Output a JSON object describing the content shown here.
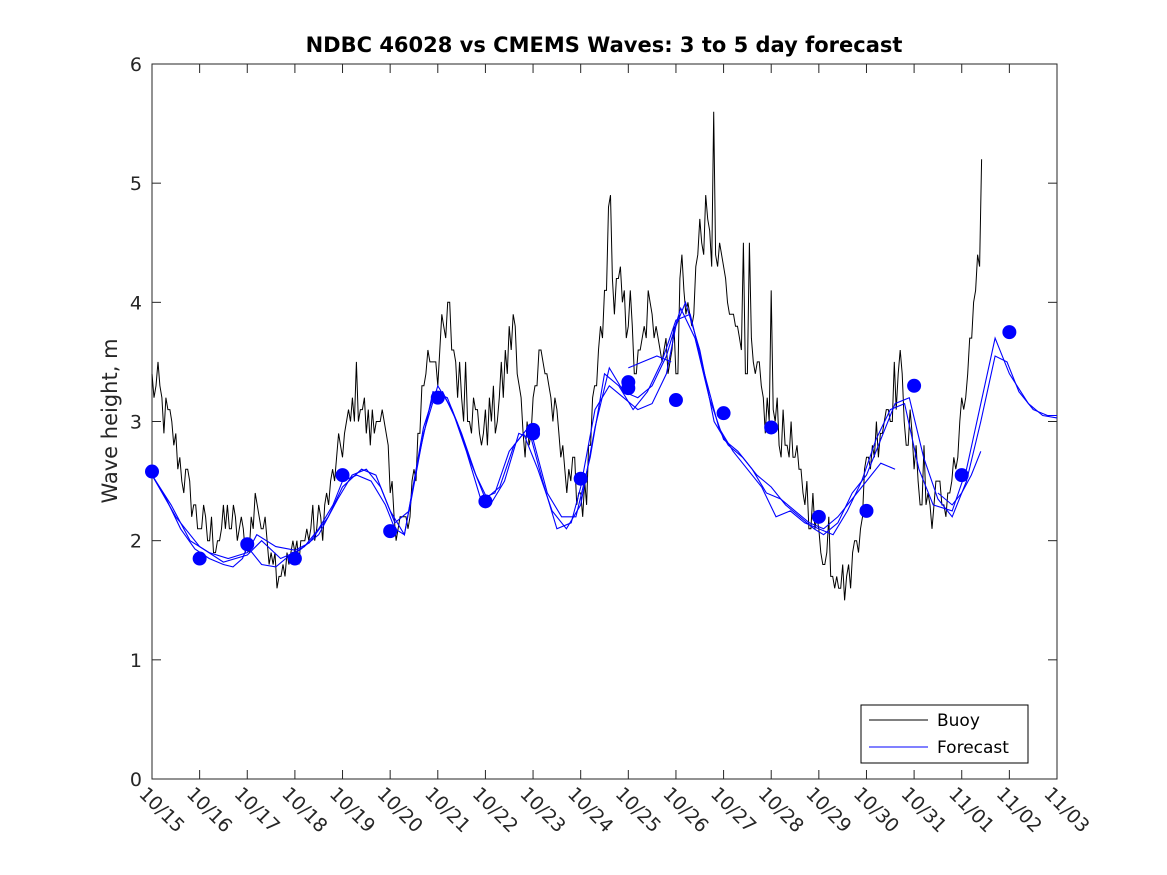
{
  "chart_data": {
    "type": "line",
    "title": "NDBC 46028 vs CMEMS Waves: 3 to 5 day forecast",
    "xlabel": "",
    "ylabel": "Wave height, m",
    "ylim": [
      0,
      6
    ],
    "xlim": [
      0,
      19
    ],
    "yticks": [
      0,
      1,
      2,
      3,
      4,
      5,
      6
    ],
    "xtick_labels": [
      "10/15",
      "10/16",
      "10/17",
      "10/18",
      "10/19",
      "10/20",
      "10/21",
      "10/22",
      "10/23",
      "10/24",
      "10/25",
      "10/26",
      "10/27",
      "10/28",
      "10/29",
      "10/30",
      "10/31",
      "11/01",
      "11/02",
      "11/03"
    ],
    "legend": {
      "location": "bottom-right",
      "entries": [
        "Buoy",
        "Forecast"
      ]
    },
    "colors": {
      "buoy": "#000000",
      "forecast": "#0000ff"
    },
    "buoy_anchors": [
      [
        0.0,
        3.3
      ],
      [
        0.15,
        3.2
      ],
      [
        0.3,
        3.0
      ],
      [
        0.5,
        2.8
      ],
      [
        0.7,
        2.5
      ],
      [
        0.85,
        2.3
      ],
      [
        1.0,
        2.15
      ],
      [
        1.2,
        2.05
      ],
      [
        1.4,
        2.05
      ],
      [
        1.6,
        2.2
      ],
      [
        1.8,
        2.05
      ],
      [
        2.0,
        2.0
      ],
      [
        2.1,
        2.1
      ],
      [
        2.2,
        2.4
      ],
      [
        2.35,
        2.05
      ],
      [
        2.5,
        1.95
      ],
      [
        2.6,
        1.8
      ],
      [
        2.8,
        1.8
      ],
      [
        3.0,
        1.9
      ],
      [
        3.2,
        2.0
      ],
      [
        3.5,
        2.15
      ],
      [
        3.7,
        2.35
      ],
      [
        3.9,
        2.65
      ],
      [
        4.0,
        2.85
      ],
      [
        4.15,
        2.95
      ],
      [
        4.3,
        3.3
      ],
      [
        4.5,
        3.0
      ],
      [
        4.65,
        2.9
      ],
      [
        4.75,
        3.2
      ],
      [
        4.9,
        2.8
      ],
      [
        5.0,
        2.4
      ],
      [
        5.1,
        2.2
      ],
      [
        5.25,
        2.15
      ],
      [
        5.4,
        2.1
      ],
      [
        5.5,
        2.5
      ],
      [
        5.6,
        3.0
      ],
      [
        5.75,
        3.5
      ],
      [
        5.9,
        3.6
      ],
      [
        6.0,
        3.5
      ],
      [
        6.15,
        3.7
      ],
      [
        6.25,
        3.85
      ],
      [
        6.4,
        3.4
      ],
      [
        6.55,
        3.25
      ],
      [
        6.7,
        3.1
      ],
      [
        6.85,
        3.0
      ],
      [
        7.0,
        2.9
      ],
      [
        7.1,
        3.0
      ],
      [
        7.25,
        3.1
      ],
      [
        7.4,
        3.4
      ],
      [
        7.5,
        3.6
      ],
      [
        7.6,
        3.9
      ],
      [
        7.7,
        3.2
      ],
      [
        7.85,
        2.8
      ],
      [
        8.0,
        3.2
      ],
      [
        8.15,
        3.5
      ],
      [
        8.3,
        3.4
      ],
      [
        8.45,
        3.0
      ],
      [
        8.6,
        2.7
      ],
      [
        8.75,
        2.6
      ],
      [
        8.9,
        2.5
      ],
      [
        9.0,
        2.4
      ],
      [
        9.1,
        2.3
      ],
      [
        9.2,
        2.7
      ],
      [
        9.35,
        3.4
      ],
      [
        9.5,
        3.9
      ],
      [
        9.6,
        4.3
      ],
      [
        9.7,
        4.0
      ],
      [
        9.8,
        4.1
      ],
      [
        9.9,
        3.9
      ],
      [
        10.0,
        4.0
      ],
      [
        10.1,
        3.6
      ],
      [
        10.2,
        3.4
      ],
      [
        10.3,
        3.6
      ],
      [
        10.4,
        3.9
      ],
      [
        10.5,
        3.8
      ],
      [
        10.6,
        4.0
      ],
      [
        10.7,
        3.6
      ],
      [
        10.8,
        3.7
      ],
      [
        10.9,
        3.5
      ],
      [
        11.0,
        3.6
      ],
      [
        11.1,
        3.8
      ],
      [
        11.2,
        4.0
      ],
      [
        11.3,
        3.8
      ],
      [
        11.4,
        4.2
      ],
      [
        11.5,
        4.5
      ],
      [
        11.6,
        4.7
      ],
      [
        11.7,
        4.4
      ],
      [
        11.8,
        4.6
      ],
      [
        11.9,
        4.2
      ],
      [
        12.0,
        4.3
      ],
      [
        12.1,
        3.9
      ],
      [
        12.2,
        3.8
      ],
      [
        12.3,
        4.0
      ],
      [
        12.4,
        3.7
      ],
      [
        12.5,
        3.6
      ],
      [
        12.6,
        3.4
      ],
      [
        12.7,
        3.3
      ],
      [
        12.8,
        3.2
      ],
      [
        12.9,
        3.0
      ],
      [
        13.0,
        3.1
      ],
      [
        13.1,
        3.2
      ],
      [
        13.2,
        2.9
      ],
      [
        13.3,
        2.8
      ],
      [
        13.4,
        2.9
      ],
      [
        13.5,
        2.6
      ],
      [
        13.6,
        2.5
      ],
      [
        13.7,
        2.45
      ],
      [
        13.8,
        2.3
      ],
      [
        13.9,
        2.2
      ],
      [
        14.0,
        2.05
      ],
      [
        14.1,
        1.95
      ],
      [
        14.2,
        1.85
      ],
      [
        14.3,
        1.8
      ],
      [
        14.4,
        1.75
      ],
      [
        14.5,
        1.7
      ],
      [
        14.6,
        1.65
      ],
      [
        14.7,
        1.8
      ],
      [
        14.8,
        2.0
      ],
      [
        14.9,
        2.3
      ],
      [
        15.0,
        2.6
      ],
      [
        15.1,
        2.8
      ],
      [
        15.2,
        2.9
      ],
      [
        15.3,
        3.0
      ],
      [
        15.4,
        3.1
      ],
      [
        15.5,
        3.2
      ],
      [
        15.6,
        3.3
      ],
      [
        15.7,
        3.4
      ],
      [
        15.8,
        3.1
      ],
      [
        15.9,
        2.9
      ],
      [
        16.0,
        2.7
      ],
      [
        16.1,
        2.5
      ],
      [
        16.2,
        2.35
      ],
      [
        16.3,
        2.3
      ],
      [
        16.4,
        2.3
      ],
      [
        16.5,
        2.4
      ],
      [
        16.6,
        2.3
      ],
      [
        16.7,
        2.35
      ],
      [
        16.8,
        2.5
      ],
      [
        16.9,
        2.7
      ],
      [
        17.0,
        2.95
      ],
      [
        17.1,
        3.3
      ],
      [
        17.2,
        3.7
      ],
      [
        17.3,
        3.9
      ],
      [
        17.35,
        4.3
      ],
      [
        17.4,
        4.8
      ],
      [
        17.45,
        4.6
      ]
    ],
    "forecast_runs": [
      [
        [
          0.0,
          2.55
        ],
        [
          0.3,
          2.35
        ],
        [
          0.6,
          2.1
        ],
        [
          0.9,
          1.93
        ],
        [
          1.2,
          1.85
        ],
        [
          1.5,
          1.8
        ],
        [
          1.7,
          1.78
        ],
        [
          1.9,
          1.85
        ],
        [
          2.0,
          1.95
        ],
        [
          2.3,
          1.8
        ],
        [
          2.6,
          1.78
        ],
        [
          2.9,
          1.88
        ],
        [
          3.2,
          1.95
        ],
        [
          3.5,
          2.1
        ],
        [
          3.8,
          2.3
        ],
        [
          4.0,
          2.5
        ],
        [
          4.3,
          2.55
        ],
        [
          4.6,
          2.5
        ],
        [
          4.9,
          2.3
        ],
        [
          5.1,
          2.1
        ],
        [
          5.3,
          2.05
        ],
        [
          5.5,
          2.5
        ],
        [
          5.7,
          2.95
        ],
        [
          5.9,
          3.2
        ],
        [
          6.1,
          3.25
        ],
        [
          6.4,
          3.0
        ],
        [
          6.7,
          2.65
        ],
        [
          7.0,
          2.35
        ],
        [
          7.3,
          2.45
        ],
        [
          7.6,
          2.8
        ],
        [
          7.9,
          2.95
        ],
        [
          8.2,
          2.5
        ],
        [
          8.5,
          2.1
        ],
        [
          8.8,
          2.15
        ],
        [
          9.0,
          2.45
        ],
        [
          9.3,
          3.1
        ],
        [
          9.6,
          3.3
        ],
        [
          9.9,
          3.2
        ],
        [
          10.2,
          3.1
        ],
        [
          10.5,
          3.15
        ],
        [
          10.8,
          3.4
        ],
        [
          11.0,
          3.8
        ],
        [
          11.2,
          4.0
        ],
        [
          11.5,
          3.6
        ],
        [
          11.8,
          3.0
        ],
        [
          12.1,
          2.8
        ],
        [
          12.4,
          2.7
        ],
        [
          12.7,
          2.55
        ],
        [
          13.0,
          2.45
        ],
        [
          13.3,
          2.3
        ],
        [
          13.6,
          2.2
        ],
        [
          13.9,
          2.1
        ],
        [
          14.1,
          2.05
        ],
        [
          14.4,
          2.15
        ],
        [
          14.7,
          2.4
        ],
        [
          15.0,
          2.55
        ],
        [
          15.3,
          2.85
        ],
        [
          15.6,
          3.15
        ],
        [
          15.9,
          3.2
        ],
        [
          16.2,
          2.7
        ],
        [
          16.5,
          2.35
        ],
        [
          16.8,
          2.2
        ],
        [
          17.1,
          2.5
        ],
        [
          17.4,
          3.0
        ],
        [
          17.7,
          3.55
        ],
        [
          17.95,
          3.5
        ],
        [
          18.2,
          3.25
        ],
        [
          18.5,
          3.1
        ],
        [
          18.8,
          3.05
        ],
        [
          19.0,
          3.05
        ]
      ],
      [
        [
          0.0,
          2.55
        ],
        [
          0.4,
          2.3
        ],
        [
          0.8,
          2.0
        ],
        [
          1.2,
          1.9
        ],
        [
          1.6,
          1.85
        ],
        [
          2.0,
          1.9
        ],
        [
          2.2,
          2.05
        ],
        [
          2.6,
          1.95
        ],
        [
          3.0,
          1.92
        ],
        [
          3.3,
          1.98
        ],
        [
          3.7,
          2.2
        ],
        [
          4.0,
          2.45
        ],
        [
          4.4,
          2.6
        ],
        [
          4.7,
          2.55
        ],
        [
          5.0,
          2.25
        ],
        [
          5.3,
          2.05
        ],
        [
          5.6,
          2.7
        ],
        [
          5.9,
          3.25
        ],
        [
          6.2,
          3.2
        ],
        [
          6.5,
          2.9
        ],
        [
          6.8,
          2.55
        ],
        [
          7.1,
          2.3
        ],
        [
          7.4,
          2.5
        ],
        [
          7.7,
          2.9
        ],
        [
          8.0,
          2.85
        ],
        [
          8.3,
          2.4
        ],
        [
          8.6,
          2.2
        ],
        [
          8.9,
          2.2
        ],
        [
          9.2,
          2.7
        ],
        [
          9.5,
          3.4
        ],
        [
          9.8,
          3.3
        ],
        [
          10.1,
          3.1
        ],
        [
          10.4,
          3.25
        ],
        [
          10.7,
          3.5
        ],
        [
          11.0,
          3.85
        ],
        [
          11.3,
          3.9
        ],
        [
          11.6,
          3.4
        ],
        [
          11.9,
          2.95
        ],
        [
          12.2,
          2.75
        ],
        [
          12.5,
          2.6
        ],
        [
          12.8,
          2.45
        ],
        [
          13.1,
          2.2
        ],
        [
          13.4,
          2.25
        ],
        [
          13.7,
          2.15
        ],
        [
          14.0,
          2.1
        ],
        [
          14.3,
          2.05
        ],
        [
          14.6,
          2.25
        ],
        [
          14.9,
          2.5
        ],
        [
          15.2,
          2.85
        ],
        [
          15.5,
          3.1
        ],
        [
          15.8,
          3.15
        ],
        [
          16.1,
          2.6
        ],
        [
          16.4,
          2.3
        ],
        [
          16.8,
          2.25
        ],
        [
          17.1,
          2.6
        ],
        [
          17.4,
          3.15
        ],
        [
          17.7,
          3.7
        ],
        [
          18.0,
          3.4
        ],
        [
          18.4,
          3.15
        ],
        [
          18.7,
          3.05
        ],
        [
          19.0,
          3.03
        ]
      ],
      [
        [
          0.0,
          2.55
        ],
        [
          0.5,
          2.2
        ],
        [
          1.0,
          1.95
        ],
        [
          1.5,
          1.82
        ],
        [
          2.0,
          1.88
        ],
        [
          2.3,
          2.0
        ],
        [
          2.7,
          1.85
        ],
        [
          3.1,
          1.92
        ],
        [
          3.5,
          2.05
        ],
        [
          3.9,
          2.35
        ],
        [
          4.2,
          2.55
        ],
        [
          4.5,
          2.6
        ],
        [
          4.8,
          2.45
        ],
        [
          5.1,
          2.15
        ],
        [
          5.4,
          2.25
        ],
        [
          5.7,
          2.9
        ],
        [
          6.0,
          3.3
        ],
        [
          6.3,
          3.1
        ],
        [
          6.6,
          2.75
        ],
        [
          6.9,
          2.35
        ],
        [
          7.2,
          2.4
        ],
        [
          7.5,
          2.75
        ],
        [
          7.8,
          2.9
        ],
        [
          8.1,
          2.6
        ],
        [
          8.4,
          2.25
        ],
        [
          8.7,
          2.1
        ],
        [
          9.0,
          2.3
        ],
        [
          9.3,
          2.95
        ],
        [
          9.6,
          3.45
        ],
        [
          9.9,
          3.25
        ],
        [
          10.2,
          3.2
        ],
        [
          10.5,
          3.3
        ],
        [
          10.8,
          3.55
        ],
        [
          11.1,
          3.95
        ],
        [
          11.4,
          3.7
        ],
        [
          11.7,
          3.2
        ],
        [
          12.0,
          2.85
        ],
        [
          12.3,
          2.75
        ],
        [
          12.6,
          2.6
        ],
        [
          12.9,
          2.4
        ],
        [
          13.2,
          2.35
        ],
        [
          13.5,
          2.25
        ],
        [
          13.8,
          2.15
        ],
        [
          14.1,
          2.1
        ],
        [
          14.4,
          2.2
        ],
        [
          14.7,
          2.35
        ],
        [
          15.0,
          2.5
        ],
        [
          15.3,
          2.65
        ],
        [
          15.6,
          2.6
        ]
      ],
      [
        [
          10.0,
          3.45
        ],
        [
          10.3,
          3.5
        ],
        [
          10.6,
          3.55
        ],
        [
          10.9,
          3.5
        ]
      ],
      [
        [
          16.5,
          2.4
        ],
        [
          16.8,
          2.3
        ],
        [
          17.0,
          2.4
        ],
        [
          17.2,
          2.55
        ],
        [
          17.4,
          2.75
        ]
      ]
    ],
    "forecast_points": [
      [
        0.0,
        2.58
      ],
      [
        1.0,
        1.85
      ],
      [
        2.0,
        1.97
      ],
      [
        3.0,
        1.85
      ],
      [
        4.0,
        2.55
      ],
      [
        5.0,
        2.08
      ],
      [
        6.0,
        3.2
      ],
      [
        7.0,
        2.33
      ],
      [
        8.0,
        2.93
      ],
      [
        8.0,
        2.9
      ],
      [
        9.0,
        2.52
      ],
      [
        10.0,
        3.33
      ],
      [
        10.0,
        3.28
      ],
      [
        11.0,
        3.18
      ],
      [
        12.0,
        3.07
      ],
      [
        13.0,
        2.95
      ],
      [
        14.0,
        2.2
      ],
      [
        15.0,
        2.25
      ],
      [
        16.0,
        3.3
      ],
      [
        17.0,
        2.55
      ],
      [
        18.0,
        3.75
      ]
    ]
  }
}
